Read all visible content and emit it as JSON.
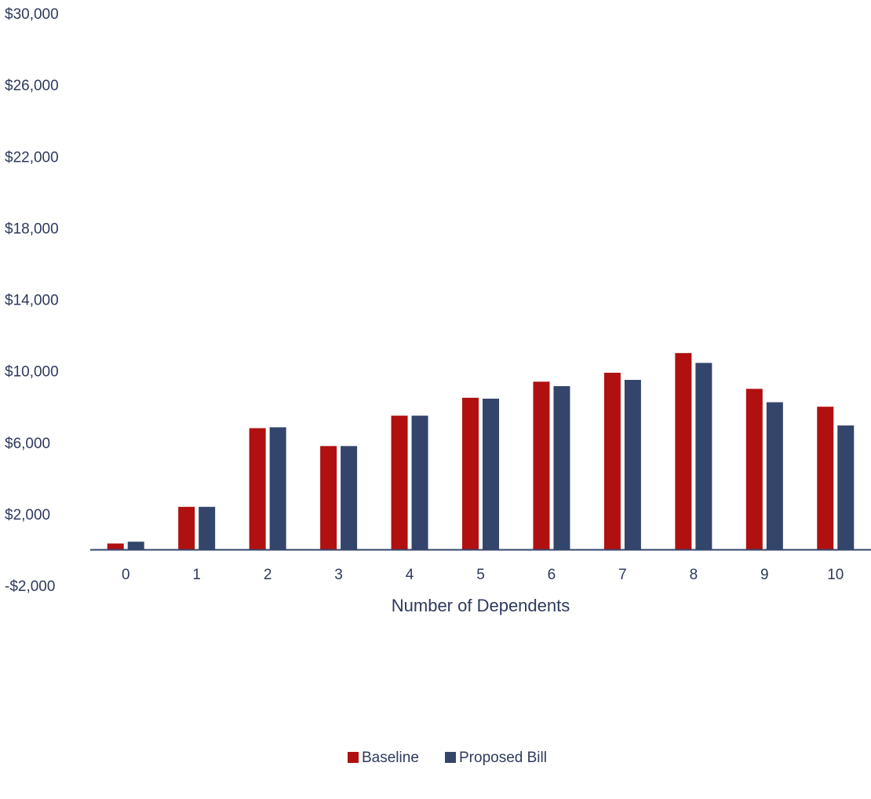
{
  "chart_data": {
    "type": "bar",
    "title": "",
    "xlabel": "Number of Dependents",
    "ylabel": "",
    "categories": [
      "0",
      "1",
      "2",
      "3",
      "4",
      "5",
      "6",
      "7",
      "8",
      "9",
      "10"
    ],
    "series": [
      {
        "name": "Baseline",
        "color": "#B01010",
        "values": [
          350,
          2400,
          6800,
          5800,
          7500,
          8500,
          9400,
          9900,
          11000,
          9000,
          8000
        ]
      },
      {
        "name": "Proposed Bill",
        "color": "#34456B",
        "values": [
          450,
          2400,
          6850,
          5800,
          7500,
          8450,
          9150,
          9500,
          10450,
          8250,
          6950
        ]
      }
    ],
    "ylim": [
      -2000,
      30000
    ],
    "yticks": [
      30000,
      26000,
      22000,
      18000,
      14000,
      10000,
      6000,
      2000,
      -2000
    ],
    "ytick_labels": [
      "$30,000",
      "$26,000",
      "$22,000",
      "$18,000",
      "$14,000",
      "$10,000",
      "$6,000",
      "$2,000",
      "-$2,000"
    ],
    "grid": false,
    "legend_position": "bottom-center",
    "text_color": "#2E3A5C",
    "axis_color": "#34456B"
  }
}
